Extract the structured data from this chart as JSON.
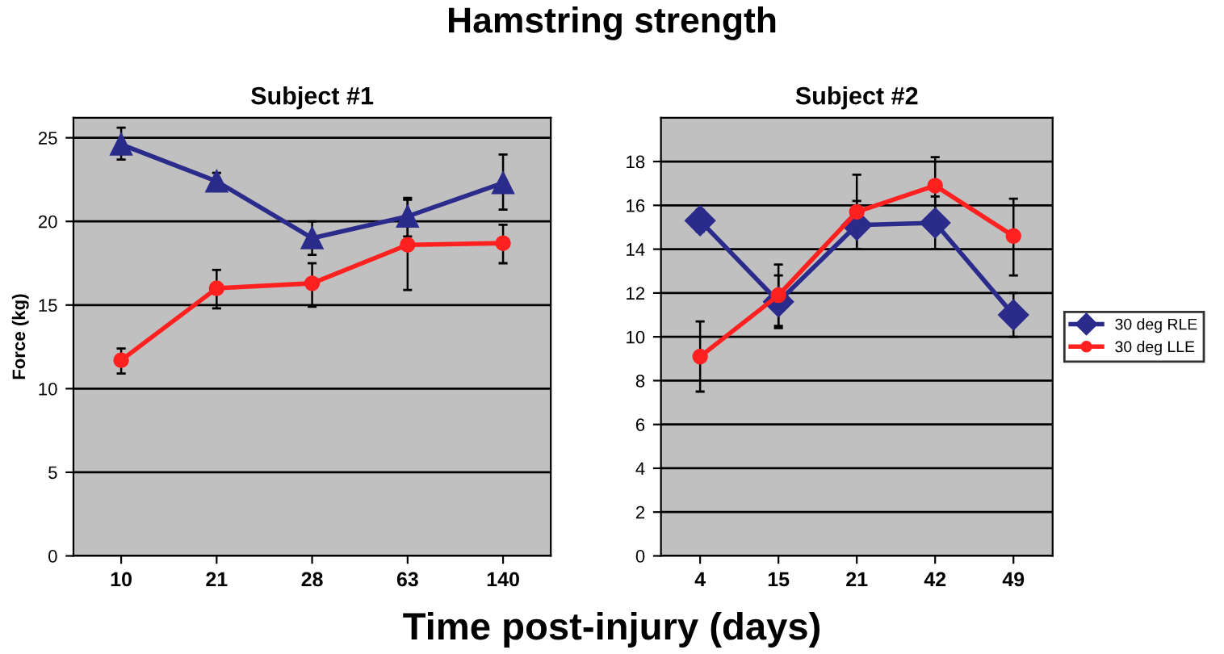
{
  "chart_data": [
    {
      "type": "line",
      "title": "Subject #1",
      "annotations": [
        "Hamstring strength"
      ],
      "xlabel": "Time post-injury (days)",
      "ylabel": "Force (kg)",
      "categories": [
        "10",
        "21",
        "28",
        "63",
        "140"
      ],
      "ylim": [
        0,
        26.2
      ],
      "yticks": [
        0,
        5,
        10,
        15,
        20,
        25
      ],
      "grid": "y",
      "legend": false,
      "series": [
        {
          "color": "#2b2b8c",
          "marker": "triangle",
          "values": [
            24.6,
            22.4,
            19.0,
            20.3,
            22.3
          ],
          "errors": [
            [
              23.7,
              25.6
            ],
            [
              22.0,
              22.9
            ],
            [
              18.0,
              20.0
            ],
            [
              19.1,
              21.4
            ],
            [
              20.7,
              24.0
            ]
          ]
        },
        {
          "color": "#ff2020",
          "marker": "circle",
          "values": [
            11.7,
            16.0,
            16.3,
            18.6,
            18.7
          ],
          "errors": [
            [
              10.9,
              12.4
            ],
            [
              14.8,
              17.1
            ],
            [
              14.9,
              17.5
            ],
            [
              15.9,
              21.3
            ],
            [
              17.5,
              19.8
            ]
          ]
        }
      ]
    },
    {
      "type": "line",
      "title": "Subject #2",
      "categories": [
        "4",
        "15",
        "21",
        "42",
        "49"
      ],
      "ylim": [
        0,
        20
      ],
      "yticks": [
        0,
        2,
        4,
        6,
        8,
        10,
        12,
        14,
        16,
        18
      ],
      "grid": "y",
      "legend": "right",
      "series": [
        {
          "name": "30 deg RLE",
          "color": "#2b2b8c",
          "marker": "diamond",
          "values": [
            15.3,
            11.6,
            15.1,
            15.2,
            11.0
          ],
          "errors": [
            [
              14.8,
              15.8
            ],
            [
              10.4,
              12.8
            ],
            [
              14.0,
              16.2
            ],
            [
              14.0,
              16.4
            ],
            [
              10.0,
              12.0
            ]
          ]
        },
        {
          "name": "30 deg LLE",
          "color": "#ff2020",
          "marker": "circle",
          "values": [
            9.1,
            11.9,
            15.7,
            16.9,
            14.6
          ],
          "errors": [
            [
              7.5,
              10.7
            ],
            [
              10.5,
              13.3
            ],
            [
              14.0,
              17.4
            ],
            [
              15.5,
              18.2
            ],
            [
              12.8,
              16.3
            ]
          ]
        }
      ]
    }
  ]
}
